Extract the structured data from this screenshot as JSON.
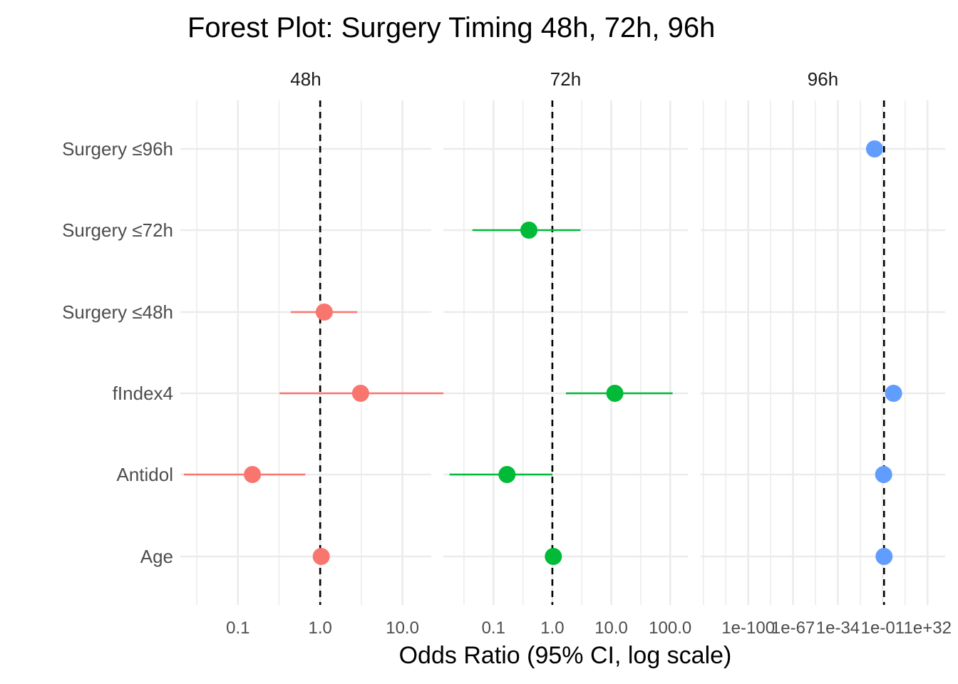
{
  "chart_data": {
    "type": "scatter",
    "subtype": "forest-plot",
    "title": "Forest Plot: Surgery Timing 48h, 72h, 96h",
    "xlabel": "Odds Ratio (95% CI, log scale)",
    "ylabel": "",
    "x_scale": "log10",
    "reference_line": 1,
    "grid": true,
    "legend": "none",
    "categories": [
      "Surgery ≤96h",
      "Surgery ≤72h",
      "Surgery ≤48h",
      "fIndex4",
      "Antidol",
      "Age"
    ],
    "panels": [
      {
        "name": "48h",
        "color": "#F8766D",
        "xlim_log10": [
          -1.7,
          1.35
        ],
        "x_ticks": [
          {
            "value": 0.1,
            "label": "0.1"
          },
          {
            "value": 1,
            "label": "1.0"
          },
          {
            "value": 10,
            "label": "10.0"
          }
        ],
        "points": [
          {
            "term": "Surgery ≤48h",
            "or": 1.12,
            "lower": 0.44,
            "upper": 2.82
          },
          {
            "term": "fIndex4",
            "or": 3.1,
            "lower": 0.32,
            "upper": 32
          },
          {
            "term": "Antidol",
            "or": 0.15,
            "lower": 0.022,
            "upper": 0.66
          },
          {
            "term": "Age",
            "or": 1.03,
            "lower": 1.0,
            "upper": 1.06
          }
        ]
      },
      {
        "name": "72h",
        "color": "#00BA38",
        "xlim_log10": [
          -1.85,
          2.3
        ],
        "x_ticks": [
          {
            "value": 0.1,
            "label": "0.1"
          },
          {
            "value": 1,
            "label": "1.0"
          },
          {
            "value": 10,
            "label": "10.0"
          },
          {
            "value": 100,
            "label": "100.0"
          }
        ],
        "points": [
          {
            "term": "Surgery ≤72h",
            "or": 0.4,
            "lower": 0.044,
            "upper": 3.0
          },
          {
            "term": "fIndex4",
            "or": 11.5,
            "lower": 1.7,
            "upper": 110
          },
          {
            "term": "Antidol",
            "or": 0.17,
            "lower": 0.018,
            "upper": 1.0
          },
          {
            "term": "Age",
            "or": 1.04,
            "lower": 1.01,
            "upper": 1.07
          }
        ]
      },
      {
        "name": "96h",
        "color": "#619CFF",
        "xlim_log10": [
          -135,
          45
        ],
        "x_ticks": [
          {
            "value": 1e-100,
            "label": "1e-100"
          },
          {
            "value": 1e-67,
            "label": "1e-67"
          },
          {
            "value": 1e-34,
            "label": "1e-34"
          },
          {
            "value": 0.1,
            "label": "1e-01"
          },
          {
            "value": 1e+32,
            "label": "1e+32"
          }
        ],
        "points": [
          {
            "term": "Surgery ≤96h",
            "or": 1e-07,
            "lower": 1e-07,
            "upper": 1e-07
          },
          {
            "term": "fIndex4",
            "or": 10000000.0,
            "lower": 10000000.0,
            "upper": 10000000.0
          },
          {
            "term": "Antidol",
            "or": 0.5,
            "lower": 0.5,
            "upper": 0.5
          },
          {
            "term": "Age",
            "or": 1.0,
            "lower": 1.0,
            "upper": 1.0
          }
        ]
      }
    ]
  }
}
